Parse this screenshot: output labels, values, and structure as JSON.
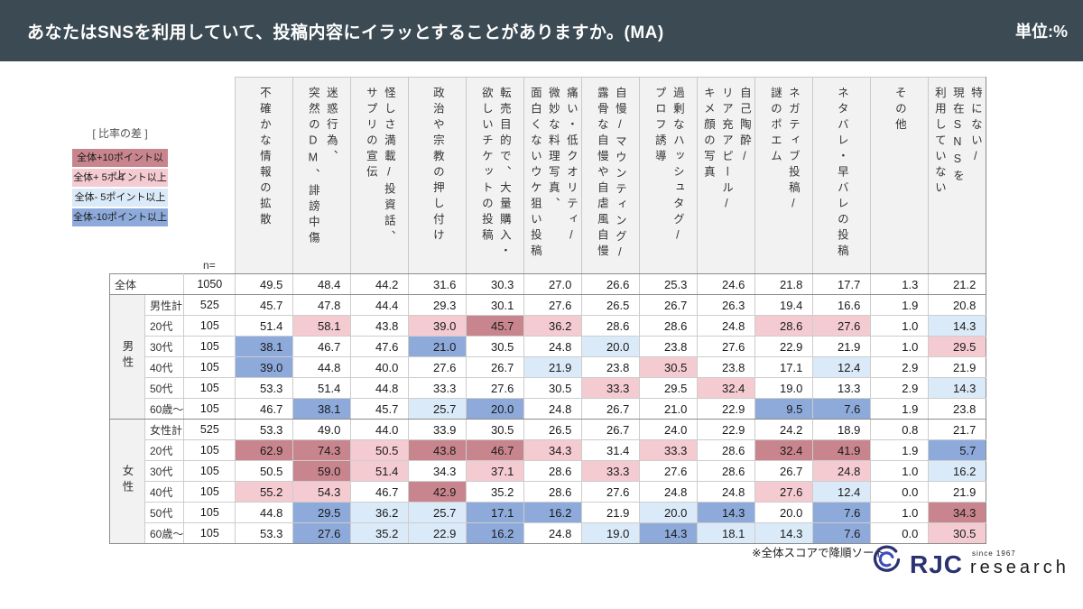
{
  "header": {
    "title": "あなたはSNSを利用していて、投稿内容にイラッとすることがありますか。(MA)",
    "unit": "単位:%"
  },
  "legend": {
    "title": "[ 比率の差 ]",
    "items": [
      {
        "label": "全体+10ポイント以上",
        "color": "#C9858E"
      },
      {
        "label": "全体+ 5ポイント以上",
        "color": "#F4CBD1"
      },
      {
        "label": "全体- 5ポイント以上",
        "color": "#DBEAF8"
      },
      {
        "label": "全体-10ポイント以上",
        "color": "#8EAADB"
      }
    ]
  },
  "chart_data": {
    "type": "table",
    "title": "あなたはSNSを利用していて、投稿内容にイラッとすることがありますか。(MA)",
    "unit": "%",
    "n_label": "n=",
    "columns": [
      "不確かな情報の拡散",
      "迷惑行為、\n突然のDM、誹謗中傷",
      "怪しさ満載/投資話、\nサプリの宣伝",
      "政治や宗教の押し付け",
      "転売目的で、大量購入・\n欲しいチケットの投稿",
      "痛い・低クオリティ/\n微妙な料理写真、\n面白くないウケ狙い投稿",
      "自慢/マウンティング/\n露骨な自慢や自虐風自慢",
      "過剰なハッシュタグ/\nプロフ誘導",
      "自己陶酔/\nリア充アピール/\nキメ顔の写真",
      "ネガティブ投稿/\n謎のポエム",
      "ネタバレ・早バレの投稿",
      "その他",
      "特にない/\n現在SNSを\n利用していない"
    ],
    "row_groups": [
      {
        "label": "",
        "rows": [
          {
            "label": "全体",
            "n": 1050,
            "values": [
              49.5,
              48.4,
              44.2,
              31.6,
              30.3,
              27.0,
              26.6,
              25.3,
              24.6,
              21.8,
              17.7,
              1.3,
              21.2
            ]
          }
        ]
      },
      {
        "label": "男性",
        "rows": [
          {
            "label": "男性計",
            "n": 525,
            "values": [
              45.7,
              47.8,
              44.4,
              29.3,
              30.1,
              27.6,
              26.5,
              26.7,
              26.3,
              19.4,
              16.6,
              1.9,
              20.8
            ]
          },
          {
            "label": "20代",
            "n": 105,
            "values": [
              51.4,
              58.1,
              43.8,
              39.0,
              45.7,
              36.2,
              28.6,
              28.6,
              24.8,
              28.6,
              27.6,
              1.0,
              14.3
            ]
          },
          {
            "label": "30代",
            "n": 105,
            "values": [
              38.1,
              46.7,
              47.6,
              21.0,
              30.5,
              24.8,
              20.0,
              23.8,
              27.6,
              22.9,
              21.9,
              1.0,
              29.5
            ]
          },
          {
            "label": "40代",
            "n": 105,
            "values": [
              39.0,
              44.8,
              40.0,
              27.6,
              26.7,
              21.9,
              23.8,
              30.5,
              23.8,
              17.1,
              12.4,
              2.9,
              21.9
            ]
          },
          {
            "label": "50代",
            "n": 105,
            "values": [
              53.3,
              51.4,
              44.8,
              33.3,
              27.6,
              30.5,
              33.3,
              29.5,
              32.4,
              19.0,
              13.3,
              2.9,
              14.3
            ]
          },
          {
            "label": "60歳〜",
            "n": 105,
            "values": [
              46.7,
              38.1,
              45.7,
              25.7,
              20.0,
              24.8,
              26.7,
              21.0,
              22.9,
              9.5,
              7.6,
              1.9,
              23.8
            ]
          }
        ]
      },
      {
        "label": "女性",
        "rows": [
          {
            "label": "女性計",
            "n": 525,
            "values": [
              53.3,
              49.0,
              44.0,
              33.9,
              30.5,
              26.5,
              26.7,
              24.0,
              22.9,
              24.2,
              18.9,
              0.8,
              21.7
            ]
          },
          {
            "label": "20代",
            "n": 105,
            "values": [
              62.9,
              74.3,
              50.5,
              43.8,
              46.7,
              34.3,
              31.4,
              33.3,
              28.6,
              32.4,
              41.9,
              1.9,
              5.7
            ]
          },
          {
            "label": "30代",
            "n": 105,
            "values": [
              50.5,
              59.0,
              51.4,
              34.3,
              37.1,
              28.6,
              33.3,
              27.6,
              28.6,
              26.7,
              24.8,
              1.0,
              16.2
            ]
          },
          {
            "label": "40代",
            "n": 105,
            "values": [
              55.2,
              54.3,
              46.7,
              42.9,
              35.2,
              28.6,
              27.6,
              24.8,
              24.8,
              27.6,
              12.4,
              0.0,
              21.9
            ]
          },
          {
            "label": "50代",
            "n": 105,
            "values": [
              44.8,
              29.5,
              36.2,
              25.7,
              17.1,
              16.2,
              21.9,
              20.0,
              14.3,
              20.0,
              7.6,
              1.0,
              34.3
            ]
          },
          {
            "label": "60歳〜",
            "n": 105,
            "values": [
              53.3,
              27.6,
              35.2,
              22.9,
              16.2,
              24.8,
              19.0,
              14.3,
              18.1,
              14.3,
              7.6,
              0.0,
              30.5
            ]
          }
        ]
      }
    ],
    "highlight": {
      "baseline_row": "全体",
      "plus10": "#C9858E",
      "plus5": "#F4CBD1",
      "minus5": "#DBEAF8",
      "minus10": "#8EAADB"
    },
    "layout_hints": {
      "legend_position": "left",
      "header_orientation": "vertical"
    }
  },
  "footnote": "※全体スコアで降順ソート",
  "logo": {
    "brand": "RJC",
    "since": "since 1967",
    "sub": "research"
  },
  "colors": {
    "topbar": "#3B4A53",
    "header_cell": "#F2F2F2",
    "brand_navy": "#2B3272",
    "brand_blue": "#3A4DBF"
  }
}
